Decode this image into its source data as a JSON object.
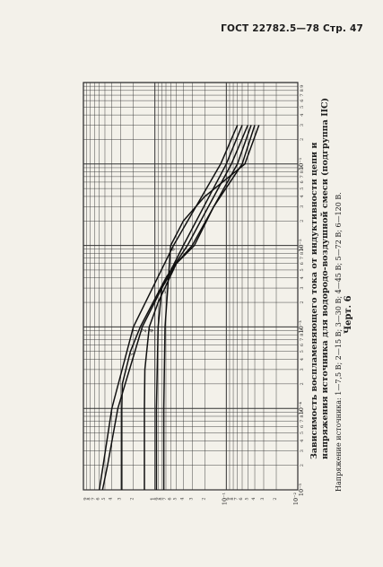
{
  "header": {
    "text": "ГОСТ 22782.5—78 Стр. 47"
  },
  "caption": {
    "title_line1": "Зависимость воспламеняющего тока от индуктивности цепи и",
    "title_line2": "напряжения источника для водородо-воздушной смеси (подгруппа IIС)",
    "legend": "Напряжение источника: 1—7,5 В; 2—15 В; 3—30 В; 4—45 В; 5—72 В; 6—120 В.",
    "figure_label": "Черт. 6"
  },
  "chart_data": {
    "type": "line",
    "x_scale": "log",
    "y_scale": "log",
    "xlim": [
      1e-05,
      1
    ],
    "ylim": [
      0.01,
      10
    ],
    "x_ticks": [
      {
        "value": 1e-05,
        "label": "10⁻⁵"
      },
      {
        "value": 0.0001,
        "label": "10⁻⁴"
      },
      {
        "value": 0.001,
        "label": "10⁻³"
      },
      {
        "value": 0.01,
        "label": "10⁻²"
      },
      {
        "value": 0.1,
        "label": "10⁻¹"
      }
    ],
    "x_minor_labels": [
      "2",
      "3",
      "4",
      "5",
      "6",
      "7",
      "8",
      "9"
    ],
    "y_ticks": [
      {
        "value": 0.01,
        "label": "10⁻²"
      },
      {
        "value": 0.1,
        "label": "10⁻¹"
      },
      {
        "value": 1,
        "label": "1"
      }
    ],
    "y_minor_labels": [
      "2",
      "3",
      "4",
      "5",
      "6",
      "7",
      "8",
      "9"
    ],
    "grid": true,
    "series": [
      {
        "name": "1",
        "points": [
          [
            1e-05,
            6.0
          ],
          [
            2e-05,
            5.3
          ],
          [
            0.0001,
            4.0
          ],
          [
            0.001,
            2.0
          ],
          [
            0.01,
            0.55
          ],
          [
            0.1,
            0.12
          ],
          [
            0.3,
            0.07
          ]
        ]
      },
      {
        "name": "2",
        "points": [
          [
            1e-05,
            5.4
          ],
          [
            2e-05,
            4.6
          ],
          [
            0.0001,
            3.3
          ],
          [
            0.001,
            1.5
          ],
          [
            0.01,
            0.4
          ],
          [
            0.1,
            0.1
          ],
          [
            0.3,
            0.06
          ]
        ]
      },
      {
        "name": "3",
        "points": [
          [
            1e-05,
            2.9
          ],
          [
            0.0001,
            2.9
          ],
          [
            0.0002,
            2.85
          ],
          [
            0.0005,
            2.2
          ],
          [
            0.001,
            1.6
          ],
          [
            0.004,
            0.7
          ],
          [
            0.01,
            0.35
          ],
          [
            0.1,
            0.085
          ],
          [
            0.3,
            0.05
          ]
        ]
      },
      {
        "name": "4",
        "points": [
          [
            1e-05,
            1.4
          ],
          [
            0.0001,
            1.4
          ],
          [
            0.0003,
            1.38
          ],
          [
            0.001,
            1.2
          ],
          [
            0.002,
            0.9
          ],
          [
            0.006,
            0.5
          ],
          [
            0.01,
            0.3
          ],
          [
            0.1,
            0.07
          ],
          [
            0.3,
            0.045
          ]
        ]
      },
      {
        "name": "5",
        "points": [
          [
            1e-05,
            0.95
          ],
          [
            0.0001,
            0.95
          ],
          [
            0.001,
            0.9
          ],
          [
            0.003,
            0.8
          ],
          [
            0.006,
            0.5
          ],
          [
            0.01,
            0.28
          ],
          [
            0.03,
            0.15
          ],
          [
            0.1,
            0.06
          ],
          [
            0.3,
            0.04
          ]
        ]
      },
      {
        "name": "6",
        "points": [
          [
            1e-05,
            0.75
          ],
          [
            0.0001,
            0.75
          ],
          [
            0.001,
            0.72
          ],
          [
            0.01,
            0.6
          ],
          [
            0.02,
            0.4
          ],
          [
            0.04,
            0.2
          ],
          [
            0.1,
            0.055
          ],
          [
            0.3,
            0.035
          ]
        ]
      }
    ]
  }
}
